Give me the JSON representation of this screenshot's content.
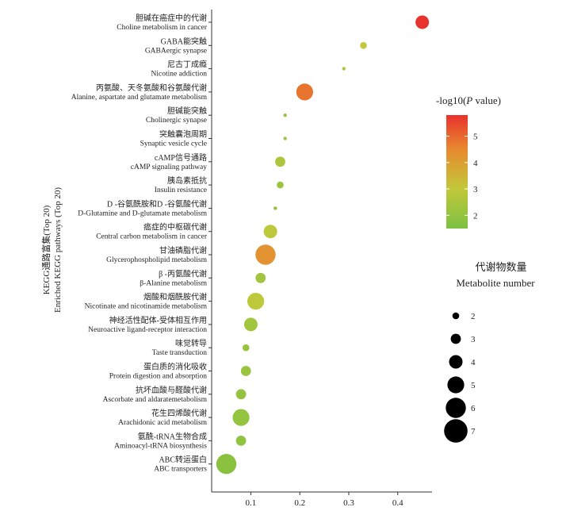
{
  "chart_data": {
    "type": "scatter",
    "ylabel_zh": "KEGG通路富集(Top 20)",
    "ylabel_en": "Enriched KEGG pathways (Top 20)",
    "x_ticks": [
      "0.1",
      "0.2",
      "0.3",
      "0.4"
    ],
    "xlim": [
      0.02,
      0.47
    ],
    "categories": [
      {
        "zh": "胆碱在癌症中的代谢",
        "en": "Choline metabolism in cancer",
        "x": 0.45,
        "count": 4,
        "neglogp": 5.8
      },
      {
        "zh": "GABA能突触",
        "en": "GABAergic synapse",
        "x": 0.33,
        "count": 2,
        "neglogp": 3.0
      },
      {
        "zh": "尼古丁成瘾",
        "en": "Nicotine addiction",
        "x": 0.29,
        "count": 1,
        "neglogp": 2.6
      },
      {
        "zh": "丙氨酸、天冬氨酸和谷氨酸代谢",
        "en": "Alanine, aspartate and glutamate metabolism",
        "x": 0.21,
        "count": 5,
        "neglogp": 4.8
      },
      {
        "zh": "胆碱能突触",
        "en": "Cholinergic synapse",
        "x": 0.17,
        "count": 1,
        "neglogp": 2.2
      },
      {
        "zh": "突触囊泡周期",
        "en": "Synaptic vesicle cycle",
        "x": 0.17,
        "count": 1,
        "neglogp": 2.2
      },
      {
        "zh": "cAMP信号通路",
        "en": "cAMP signaling pathway",
        "x": 0.16,
        "count": 3,
        "neglogp": 2.5
      },
      {
        "zh": "胰岛素抵抗",
        "en": "Insulin resistance",
        "x": 0.16,
        "count": 2,
        "neglogp": 2.2
      },
      {
        "zh": "D -谷氨酰胺和D -谷氨酸代谢",
        "en": "D-Glutamine and D-glutamate metabolism",
        "x": 0.15,
        "count": 1,
        "neglogp": 1.9
      },
      {
        "zh": "癌症的中枢碳代谢",
        "en": "Central carbon metabolism in cancer",
        "x": 0.14,
        "count": 4,
        "neglogp": 2.9
      },
      {
        "zh": "甘油磷脂代谢",
        "en": "Glycerophospholipid metabolism",
        "x": 0.13,
        "count": 6,
        "neglogp": 4.3
      },
      {
        "zh": "β -丙氨酸代谢",
        "en": "β-Alanine metabolism",
        "x": 0.12,
        "count": 3,
        "neglogp": 2.3
      },
      {
        "zh": "烟酸和烟酰胺代谢",
        "en": "Nicotinate and nicotinamide metabolism",
        "x": 0.11,
        "count": 5,
        "neglogp": 2.9
      },
      {
        "zh": "神经活性配体-受体相互作用",
        "en": "Neuroactive ligand-receptor interaction",
        "x": 0.1,
        "count": 4,
        "neglogp": 2.3
      },
      {
        "zh": "味觉转导",
        "en": "Taste transduction",
        "x": 0.09,
        "count": 2,
        "neglogp": 2.1
      },
      {
        "zh": "蛋白质的消化吸收",
        "en": "Protein digestion and absorption",
        "x": 0.09,
        "count": 3,
        "neglogp": 2.1
      },
      {
        "zh": "抗坏血酸与醛酸代谢",
        "en": "Ascorbate and aldaratemetabolism",
        "x": 0.08,
        "count": 3,
        "neglogp": 2.0
      },
      {
        "zh": "花生四烯酸代谢",
        "en": "Arachidonic acid metabolism",
        "x": 0.08,
        "count": 5,
        "neglogp": 2.0
      },
      {
        "zh": "氨酰-tRNA生物合成",
        "en": "Aminoacyl-tRNA biosynthesis",
        "x": 0.08,
        "count": 3,
        "neglogp": 1.9
      },
      {
        "zh": "ABC转运蛋白",
        "en": "ABC transporters",
        "x": 0.05,
        "count": 6,
        "neglogp": 1.8
      }
    ],
    "color_legend": {
      "title_prefix": "-log10(",
      "title_italic": "P",
      "title_suffix": " value)",
      "ticks": [
        "2",
        "3",
        "4",
        "5"
      ],
      "tick_values": [
        2,
        3,
        4,
        5
      ],
      "range": [
        1.5,
        5.8
      ],
      "low_color": "#7cc142",
      "mid_color": "#c2c83a",
      "mid2_color": "#e8892f",
      "high_color": "#e8322e"
    },
    "size_legend": {
      "title_zh": "代谢物数量",
      "title_en": "Metabolite number",
      "values": [
        "2",
        "3",
        "4",
        "5",
        "6",
        "7"
      ]
    },
    "grid": false,
    "legend_position": "right"
  }
}
